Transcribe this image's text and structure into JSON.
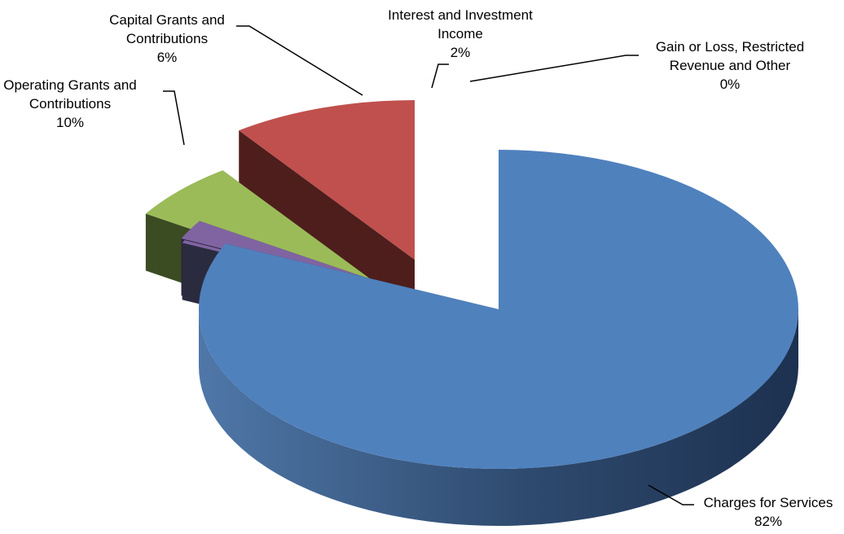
{
  "chart_data": {
    "type": "pie",
    "style": "3d-exploded",
    "title": "",
    "slices": [
      {
        "name_lines": [
          "Charges for Services"
        ],
        "label": "82%",
        "value": 82,
        "color": "#4F81BD",
        "label_position": "bottom-right"
      },
      {
        "name_lines": [
          "Gain or Loss, Restricted",
          "Revenue and Other"
        ],
        "label": "0%",
        "value": 0.3,
        "color": "#8064A2",
        "label_position": "top-right"
      },
      {
        "name_lines": [
          "Interest and Investment",
          "Income"
        ],
        "label": "2%",
        "value": 2,
        "color": "#8064A2",
        "label_position": "top"
      },
      {
        "name_lines": [
          "Capital Grants and",
          "Contributions"
        ],
        "label": "6%",
        "value": 6,
        "color": "#9BBB59",
        "label_position": "top-left"
      },
      {
        "name_lines": [
          "Operating Grants and",
          "Contributions"
        ],
        "label": "10%",
        "value": 10,
        "color": "#C0504D",
        "label_position": "left"
      }
    ]
  }
}
